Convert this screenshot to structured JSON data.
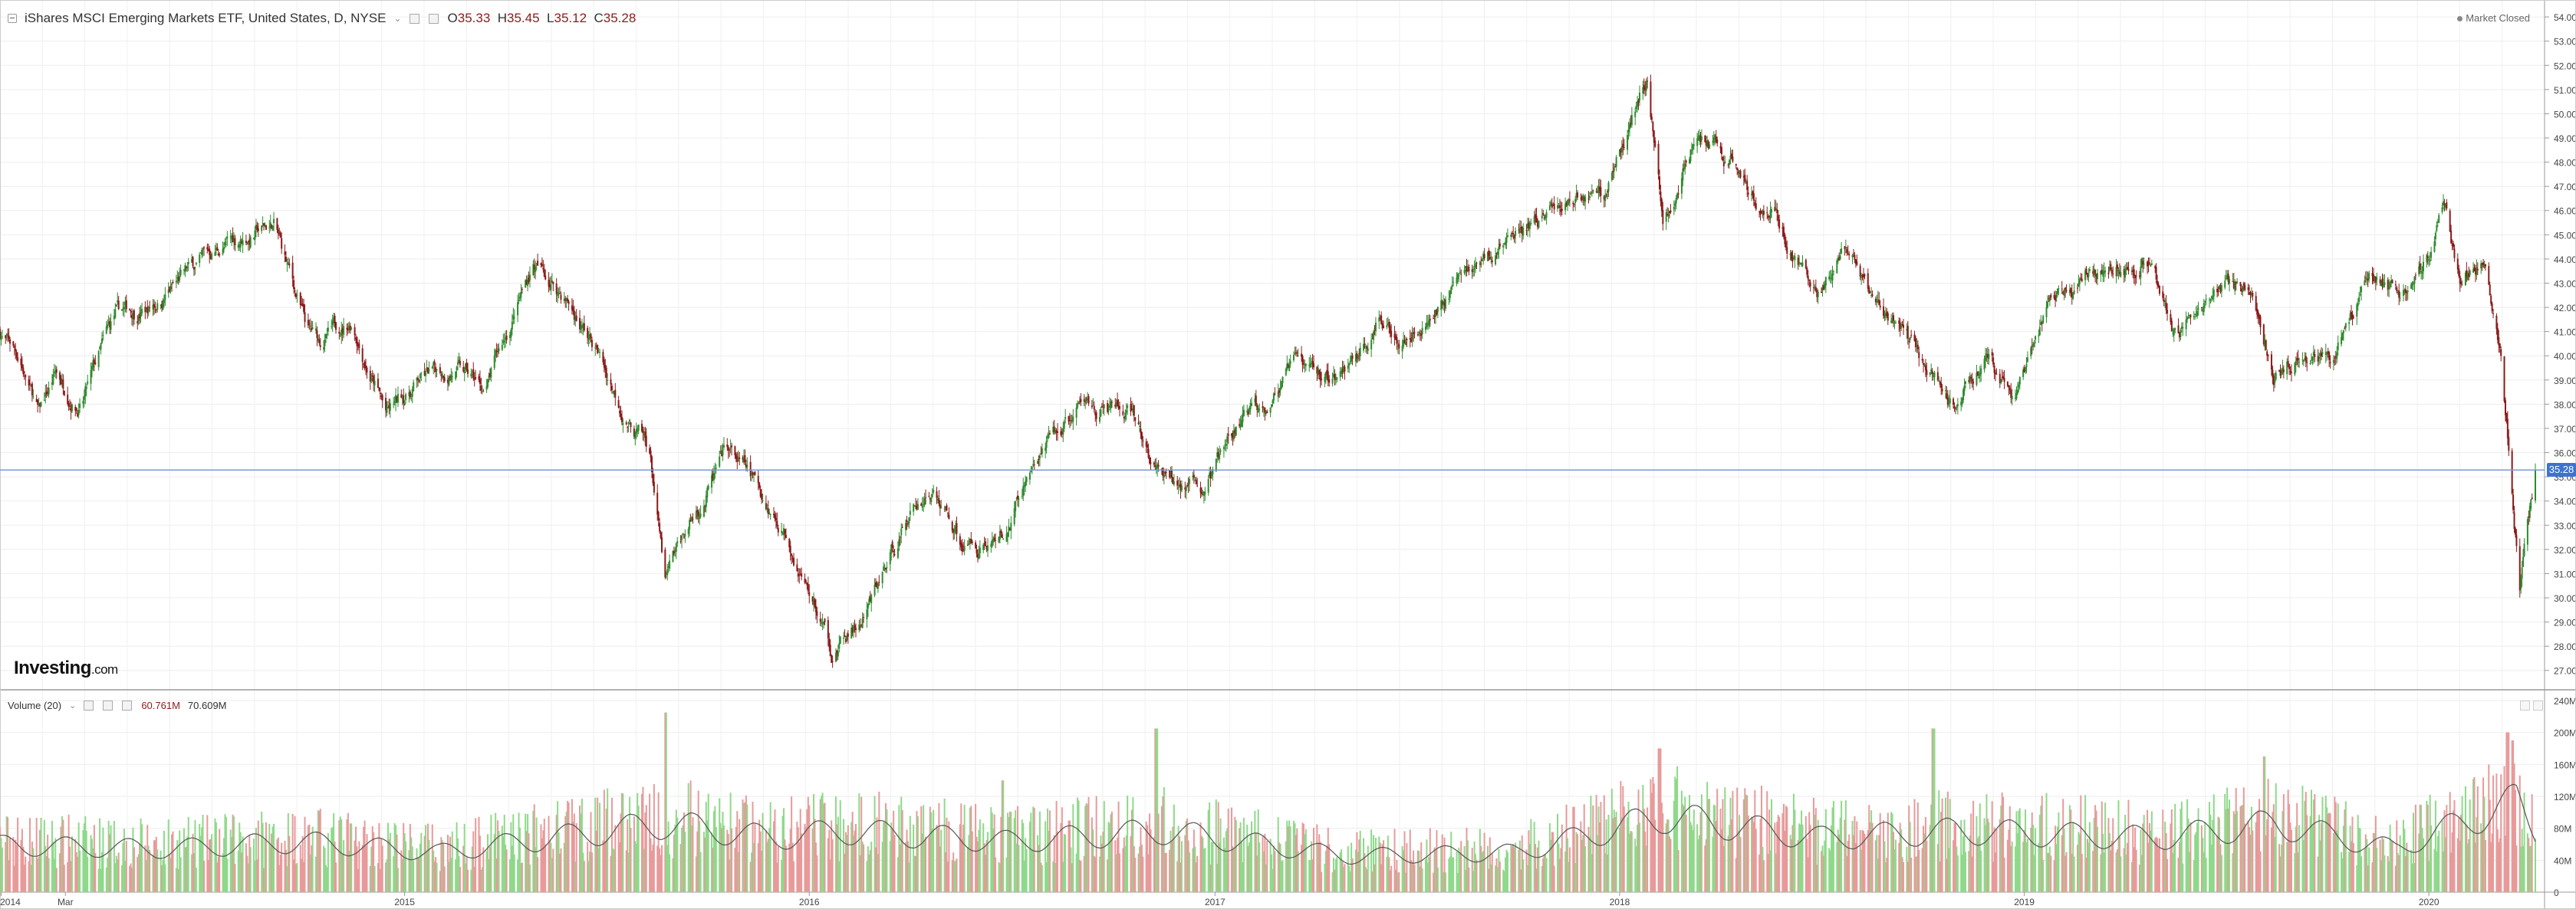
{
  "header": {
    "title": "iShares MSCI Emerging Markets ETF, United States, D, NYSE",
    "open_label": "O",
    "open": "35.33",
    "high_label": "H",
    "high": "35.45",
    "low_label": "L",
    "low": "35.12",
    "close_label": "C",
    "close": "35.28"
  },
  "market_status": "Market Closed",
  "logo": {
    "brand": "Investing",
    "domain": ".com"
  },
  "current_price_tag": "35.28",
  "volume_header": {
    "label": "Volume (20)",
    "value1": "60.761M",
    "value2": "70.609M"
  },
  "colors": {
    "up": "#2e8b2e",
    "down": "#8b1a1a",
    "vol_up": "#8fd98a",
    "vol_down": "#e89a9a",
    "ma_line": "#555555",
    "price_line": "#7d96e0",
    "price_tag": "#3b73d1"
  },
  "chart_data": [
    {
      "type": "candlestick",
      "title": "iShares MSCI Emerging Markets ETF, United States, D, NYSE",
      "x_tick_labels": [
        "2014",
        "Mar",
        "2015",
        "2016",
        "2017",
        "2018",
        "2019",
        "2020"
      ],
      "y_tick_labels": [
        "27.00",
        "28.00",
        "29.00",
        "30.00",
        "31.00",
        "32.00",
        "33.00",
        "34.00",
        "35.00",
        "36.00",
        "37.00",
        "38.00",
        "39.00",
        "40.00",
        "41.00",
        "42.00",
        "43.00",
        "44.00",
        "45.00",
        "46.00",
        "47.00",
        "48.00",
        "49.00",
        "50.00",
        "51.00",
        "52.00",
        "53.00",
        "54.00"
      ],
      "ylim": [
        26.2,
        54.7
      ],
      "xlim": [
        "2014-01-01",
        "2020-04-06"
      ],
      "price_path": [
        {
          "date": "2014-01-01",
          "close": 41.0
        },
        {
          "date": "2014-01-20",
          "close": 39.8
        },
        {
          "date": "2014-02-05",
          "close": 37.5
        },
        {
          "date": "2014-02-20",
          "close": 39.2
        },
        {
          "date": "2014-03-15",
          "close": 38.0
        },
        {
          "date": "2014-04-15",
          "close": 41.5
        },
        {
          "date": "2014-05-15",
          "close": 42.0
        },
        {
          "date": "2014-06-15",
          "close": 43.2
        },
        {
          "date": "2014-07-20",
          "close": 44.5
        },
        {
          "date": "2014-09-05",
          "close": 45.4
        },
        {
          "date": "2014-10-05",
          "close": 41.0
        },
        {
          "date": "2014-10-15",
          "close": 40.5
        },
        {
          "date": "2014-11-15",
          "close": 41.5
        },
        {
          "date": "2014-12-16",
          "close": 37.5
        },
        {
          "date": "2015-01-15",
          "close": 39.0
        },
        {
          "date": "2015-02-15",
          "close": 39.5
        },
        {
          "date": "2015-03-15",
          "close": 38.5
        },
        {
          "date": "2015-04-27",
          "close": 43.8
        },
        {
          "date": "2015-05-25",
          "close": 42.5
        },
        {
          "date": "2015-06-25",
          "close": 40.0
        },
        {
          "date": "2015-07-20",
          "close": 37.5
        },
        {
          "date": "2015-08-10",
          "close": 36.0
        },
        {
          "date": "2015-08-24",
          "close": 30.5
        },
        {
          "date": "2015-09-15",
          "close": 33.0
        },
        {
          "date": "2015-10-20",
          "close": 36.0
        },
        {
          "date": "2015-11-15",
          "close": 34.5
        },
        {
          "date": "2015-12-15",
          "close": 32.5
        },
        {
          "date": "2016-01-21",
          "close": 27.8
        },
        {
          "date": "2016-02-20",
          "close": 29.0
        },
        {
          "date": "2016-03-30",
          "close": 33.5
        },
        {
          "date": "2016-04-20",
          "close": 34.5
        },
        {
          "date": "2016-05-20",
          "close": 32.2
        },
        {
          "date": "2016-06-27",
          "close": 32.5
        },
        {
          "date": "2016-07-20",
          "close": 35.5
        },
        {
          "date": "2016-09-07",
          "close": 38.0
        },
        {
          "date": "2016-10-15",
          "close": 37.5
        },
        {
          "date": "2016-11-10",
          "close": 35.0
        },
        {
          "date": "2016-12-20",
          "close": 34.5
        },
        {
          "date": "2017-01-30",
          "close": 37.5
        },
        {
          "date": "2017-03-15",
          "close": 39.5
        },
        {
          "date": "2017-04-20",
          "close": 39.0
        },
        {
          "date": "2017-05-25",
          "close": 41.0
        },
        {
          "date": "2017-07-10",
          "close": 41.5
        },
        {
          "date": "2017-08-15",
          "close": 43.5
        },
        {
          "date": "2017-10-15",
          "close": 45.5
        },
        {
          "date": "2017-11-20",
          "close": 46.5
        },
        {
          "date": "2017-12-20",
          "close": 47.0
        },
        {
          "date": "2018-01-26",
          "close": 51.7
        },
        {
          "date": "2018-02-09",
          "close": 45.5
        },
        {
          "date": "2018-03-10",
          "close": 49.0
        },
        {
          "date": "2018-04-10",
          "close": 48.0
        },
        {
          "date": "2018-05-20",
          "close": 46.0
        },
        {
          "date": "2018-06-28",
          "close": 42.5
        },
        {
          "date": "2018-07-20",
          "close": 44.0
        },
        {
          "date": "2018-08-15",
          "close": 42.5
        },
        {
          "date": "2018-09-10",
          "close": 41.0
        },
        {
          "date": "2018-10-30",
          "close": 38.0
        },
        {
          "date": "2018-11-25",
          "close": 40.0
        },
        {
          "date": "2018-12-24",
          "close": 38.0
        },
        {
          "date": "2019-01-25",
          "close": 42.0
        },
        {
          "date": "2019-02-25",
          "close": 43.5
        },
        {
          "date": "2019-04-17",
          "close": 44.3
        },
        {
          "date": "2019-05-20",
          "close": 40.5
        },
        {
          "date": "2019-06-25",
          "close": 42.8
        },
        {
          "date": "2019-07-20",
          "close": 42.8
        },
        {
          "date": "2019-08-15",
          "close": 39.2
        },
        {
          "date": "2019-09-15",
          "close": 40.5
        },
        {
          "date": "2019-10-05",
          "close": 40.0
        },
        {
          "date": "2019-11-10",
          "close": 43.5
        },
        {
          "date": "2019-12-05",
          "close": 42.5
        },
        {
          "date": "2020-01-17",
          "close": 46.0
        },
        {
          "date": "2020-01-31",
          "close": 42.5
        },
        {
          "date": "2020-02-20",
          "close": 44.5
        },
        {
          "date": "2020-03-05",
          "close": 40.5
        },
        {
          "date": "2020-03-23",
          "close": 30.5
        },
        {
          "date": "2020-04-03",
          "close": 34.0
        },
        {
          "date": "2020-04-06",
          "close": 35.28
        }
      ],
      "last_close": 35.28,
      "grid": true
    },
    {
      "type": "bar",
      "title": "Volume (20)",
      "y_tick_labels": [
        "0",
        "40M",
        "80M",
        "120M",
        "160M",
        "200M",
        "240M"
      ],
      "ylim": [
        0,
        240
      ],
      "unit": "M",
      "ma_period": 20,
      "ma_path": [
        {
          "date": "2014-01-01",
          "value": 65
        },
        {
          "date": "2014-06-01",
          "value": 60
        },
        {
          "date": "2014-10-01",
          "value": 70
        },
        {
          "date": "2015-02-01",
          "value": 55
        },
        {
          "date": "2015-08-25",
          "value": 95
        },
        {
          "date": "2015-12-01",
          "value": 75
        },
        {
          "date": "2016-02-01",
          "value": 85
        },
        {
          "date": "2016-07-01",
          "value": 70
        },
        {
          "date": "2016-11-15",
          "value": 85
        },
        {
          "date": "2017-05-01",
          "value": 50
        },
        {
          "date": "2017-10-01",
          "value": 55
        },
        {
          "date": "2018-02-10",
          "value": 105
        },
        {
          "date": "2018-07-01",
          "value": 75
        },
        {
          "date": "2018-11-01",
          "value": 85
        },
        {
          "date": "2019-05-01",
          "value": 75
        },
        {
          "date": "2019-08-15",
          "value": 95
        },
        {
          "date": "2019-12-01",
          "value": 60
        },
        {
          "date": "2020-03-20",
          "value": 125
        },
        {
          "date": "2020-04-06",
          "value": 85
        }
      ],
      "spikes": [
        {
          "date": "2015-08-24",
          "value": 225
        },
        {
          "date": "2016-06-24",
          "value": 140
        },
        {
          "date": "2016-11-09",
          "value": 205
        },
        {
          "date": "2018-02-06",
          "value": 180
        },
        {
          "date": "2018-10-11",
          "value": 205
        },
        {
          "date": "2019-08-05",
          "value": 170
        },
        {
          "date": "2020-03-12",
          "value": 200
        },
        {
          "date": "2020-03-16",
          "value": 190
        }
      ],
      "grid": true
    }
  ]
}
